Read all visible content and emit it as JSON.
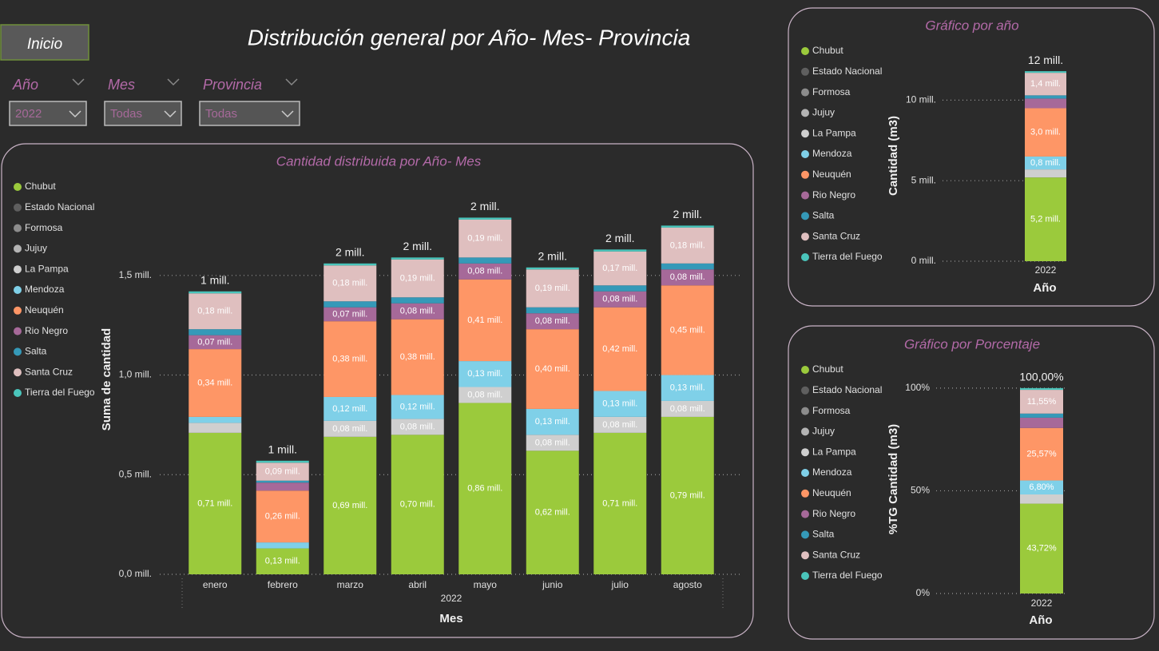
{
  "button": "Inicio",
  "title": "Distribución general por Año- Mes- Provincia",
  "filters": [
    {
      "label": "Año",
      "value": "2022"
    },
    {
      "label": "Mes",
      "value": "Todas"
    },
    {
      "label": "Provincia",
      "value": "Todas"
    }
  ],
  "chart_data": [
    {
      "type": "bar",
      "stacked": true,
      "title": "Cantidad distribuida por Año- Mes",
      "x_label": "Mes",
      "x_group_label": "2022",
      "y_label": "Suma de cantidad",
      "categories": [
        "enero",
        "febrero",
        "marzo",
        "abril",
        "mayo",
        "junio",
        "julio",
        "agosto"
      ],
      "ylim": [
        0,
        1.9
      ],
      "yticks": [
        {
          "value": 0,
          "label": "0,0 mill."
        },
        {
          "value": 0.5,
          "label": "0,5 mill."
        },
        {
          "value": 1,
          "label": "1,0 mill."
        },
        {
          "value": 1.5,
          "label": "1,5 mill."
        }
      ],
      "grid": true,
      "legend": "left",
      "total_labels": [
        "1 mill.",
        "1 mill.",
        "2 mill.",
        "2 mill.",
        "2 mill.",
        "2 mill.",
        "2 mill.",
        "2 mill."
      ],
      "series": [
        {
          "name": "Chubut",
          "color": "#9bca3c",
          "values": [
            0.71,
            0.13,
            0.69,
            0.7,
            0.86,
            0.62,
            0.71,
            0.79
          ],
          "value_labels": [
            "0,71 mill.",
            "0,13 mill.",
            "0,69 mill.",
            "0,70 mill.",
            "0,86 mill.",
            "0,62 mill.",
            "0,71 mill.",
            "0,79 mill."
          ]
        },
        {
          "name": "Estado Nacional",
          "color": "#5f5f5f",
          "values": [
            0,
            0,
            0,
            0,
            0,
            0,
            0,
            0
          ]
        },
        {
          "name": "Formosa",
          "color": "#8c8c8c",
          "values": [
            0,
            0,
            0,
            0,
            0,
            0,
            0,
            0
          ]
        },
        {
          "name": "Jujuy",
          "color": "#b4b4b4",
          "values": [
            0,
            0,
            0,
            0,
            0,
            0,
            0,
            0
          ]
        },
        {
          "name": "La Pampa",
          "color": "#cfcfcf",
          "values": [
            0.05,
            0,
            0.08,
            0.08,
            0.08,
            0.08,
            0.08,
            0.08
          ],
          "value_labels": [
            null,
            null,
            "0,08 mill.",
            "0,08 mill.",
            "0,08 mill.",
            "0,08 mill.",
            "0,08 mill.",
            "0,08 mill."
          ]
        },
        {
          "name": "Mendoza",
          "color": "#7fd0e8",
          "values": [
            0.03,
            0.03,
            0.12,
            0.12,
            0.13,
            0.13,
            0.13,
            0.13
          ],
          "value_labels": [
            null,
            null,
            "0,12 mill.",
            "0,12 mill.",
            "0,13 mill.",
            "0,13 mill.",
            "0,13 mill.",
            "0,13 mill."
          ]
        },
        {
          "name": "Neuquén",
          "color": "#fe9666",
          "values": [
            0.34,
            0.26,
            0.38,
            0.38,
            0.41,
            0.4,
            0.42,
            0.45
          ],
          "value_labels": [
            "0,34 mill.",
            "0,26 mill.",
            "0,38 mill.",
            "0,38 mill.",
            "0,41 mill.",
            "0,40 mill.",
            "0,42 mill.",
            "0,45 mill."
          ]
        },
        {
          "name": "Rio Negro",
          "color": "#a66999",
          "values": [
            0.07,
            0.04,
            0.07,
            0.08,
            0.08,
            0.08,
            0.08,
            0.08
          ],
          "value_labels": [
            "0,07 mill.",
            null,
            "0,07 mill.",
            "0,08 mill.",
            "0,08 mill.",
            "0,08 mill.",
            "0,08 mill.",
            "0,08 mill."
          ]
        },
        {
          "name": "Salta",
          "color": "#3599b8",
          "values": [
            0.03,
            0.01,
            0.03,
            0.03,
            0.03,
            0.03,
            0.03,
            0.03
          ]
        },
        {
          "name": "Santa Cruz",
          "color": "#dfbfbf",
          "values": [
            0.18,
            0.09,
            0.18,
            0.19,
            0.19,
            0.19,
            0.17,
            0.18
          ],
          "value_labels": [
            "0,18 mill.",
            "0,09 mill.",
            "0,18 mill.",
            "0,19 mill.",
            "0,19 mill.",
            "0,19 mill.",
            "0,17 mill.",
            "0,18 mill."
          ]
        },
        {
          "name": "Tierra del Fuego",
          "color": "#4ac5bb",
          "values": [
            0.01,
            0.01,
            0.01,
            0.01,
            0.01,
            0.01,
            0.01,
            0.01
          ]
        }
      ]
    },
    {
      "type": "bar",
      "stacked": true,
      "title": "Gráfico por año",
      "x_label": "Año",
      "y_label": "Cantidad (m3)",
      "categories": [
        "2022"
      ],
      "ylim": [
        0,
        12.5
      ],
      "yticks": [
        {
          "value": 0,
          "label": "0 mill."
        },
        {
          "value": 5,
          "label": "5 mill."
        },
        {
          "value": 10,
          "label": "10 mill."
        }
      ],
      "grid": true,
      "legend": "left",
      "total_labels": [
        "12 mill."
      ],
      "series": [
        {
          "name": "Chubut",
          "color": "#9bca3c",
          "values": [
            5.2
          ],
          "value_labels": [
            "5,2 mill."
          ]
        },
        {
          "name": "Estado Nacional",
          "color": "#5f5f5f",
          "values": [
            0
          ]
        },
        {
          "name": "Formosa",
          "color": "#8c8c8c",
          "values": [
            0
          ]
        },
        {
          "name": "Jujuy",
          "color": "#b4b4b4",
          "values": [
            0
          ]
        },
        {
          "name": "La Pampa",
          "color": "#cfcfcf",
          "values": [
            0.5
          ]
        },
        {
          "name": "Mendoza",
          "color": "#7fd0e8",
          "values": [
            0.8
          ],
          "value_labels": [
            "0,8 mill."
          ]
        },
        {
          "name": "Neuquén",
          "color": "#fe9666",
          "values": [
            3.0
          ],
          "value_labels": [
            "3,0 mill."
          ]
        },
        {
          "name": "Rio Negro",
          "color": "#a66999",
          "values": [
            0.6
          ]
        },
        {
          "name": "Salta",
          "color": "#3599b8",
          "values": [
            0.2
          ]
        },
        {
          "name": "Santa Cruz",
          "color": "#dfbfbf",
          "values": [
            1.4
          ],
          "value_labels": [
            "1,4 mill."
          ]
        },
        {
          "name": "Tierra del Fuego",
          "color": "#4ac5bb",
          "values": [
            0.1
          ]
        }
      ]
    },
    {
      "type": "bar",
      "stacked": true,
      "title": "Gráfico por Porcentaje",
      "x_label": "Año",
      "y_label": "%TG Cantidad (m3)",
      "categories": [
        "2022"
      ],
      "ylim": [
        0,
        105
      ],
      "yticks": [
        {
          "value": 0,
          "label": "0%"
        },
        {
          "value": 50,
          "label": "50%"
        },
        {
          "value": 100,
          "label": "100%"
        }
      ],
      "grid": true,
      "legend": "left",
      "total_labels": [
        "100,00%"
      ],
      "series": [
        {
          "name": "Chubut",
          "color": "#9bca3c",
          "values": [
            43.72
          ],
          "value_labels": [
            "43,72%"
          ]
        },
        {
          "name": "Estado Nacional",
          "color": "#5f5f5f",
          "values": [
            0
          ]
        },
        {
          "name": "Formosa",
          "color": "#8c8c8c",
          "values": [
            0
          ]
        },
        {
          "name": "Jujuy",
          "color": "#b4b4b4",
          "values": [
            0
          ]
        },
        {
          "name": "La Pampa",
          "color": "#cfcfcf",
          "values": [
            4.5
          ]
        },
        {
          "name": "Mendoza",
          "color": "#7fd0e8",
          "values": [
            6.8
          ],
          "value_labels": [
            "6,80%"
          ]
        },
        {
          "name": "Neuquén",
          "color": "#fe9666",
          "values": [
            25.57
          ],
          "value_labels": [
            "25,57%"
          ]
        },
        {
          "name": "Rio Negro",
          "color": "#a66999",
          "values": [
            5.0
          ]
        },
        {
          "name": "Salta",
          "color": "#3599b8",
          "values": [
            2.0
          ]
        },
        {
          "name": "Santa Cruz",
          "color": "#dfbfbf",
          "values": [
            11.55
          ],
          "value_labels": [
            "11,55%"
          ]
        },
        {
          "name": "Tierra del Fuego",
          "color": "#4ac5bb",
          "values": [
            0.86
          ]
        }
      ]
    }
  ]
}
